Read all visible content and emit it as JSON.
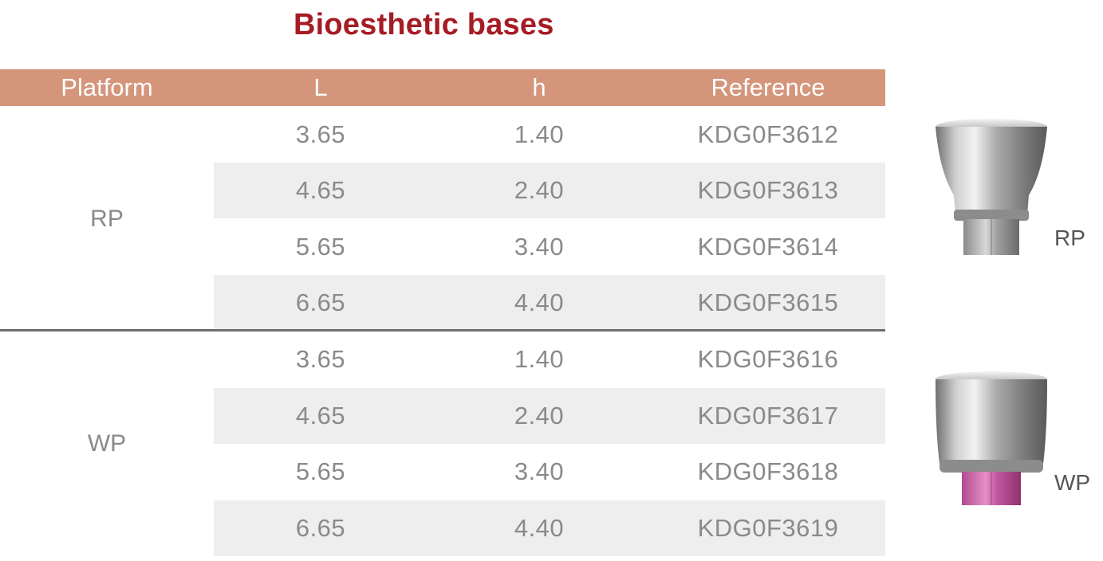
{
  "title": "Bioesthetic bases",
  "table": {
    "headers": [
      "Platform",
      "L",
      "h",
      "Reference"
    ],
    "groups": [
      {
        "platform": "RP",
        "rows": [
          {
            "L": "3.65",
            "h": "1.40",
            "reference": "KDG0F3612"
          },
          {
            "L": "4.65",
            "h": "2.40",
            "reference": "KDG0F3613"
          },
          {
            "L": "5.65",
            "h": "3.40",
            "reference": "KDG0F3614"
          },
          {
            "L": "6.65",
            "h": "4.40",
            "reference": "KDG0F3615"
          }
        ]
      },
      {
        "platform": "WP",
        "rows": [
          {
            "L": "3.65",
            "h": "1.40",
            "reference": "KDG0F3616"
          },
          {
            "L": "4.65",
            "h": "2.40",
            "reference": "KDG0F3617"
          },
          {
            "L": "5.65",
            "h": "3.40",
            "reference": "KDG0F3618"
          },
          {
            "L": "6.65",
            "h": "4.40",
            "reference": "KDG0F3619"
          }
        ]
      }
    ]
  },
  "images": [
    {
      "label": "RP",
      "hex_color": "#9a9a9a"
    },
    {
      "label": "WP",
      "hex_color": "#c2589e"
    }
  ],
  "colors": {
    "title": "#a61c24",
    "header_bg": "#d4957b",
    "row_shade": "#eeeeee",
    "text": "#8a8a8a"
  }
}
